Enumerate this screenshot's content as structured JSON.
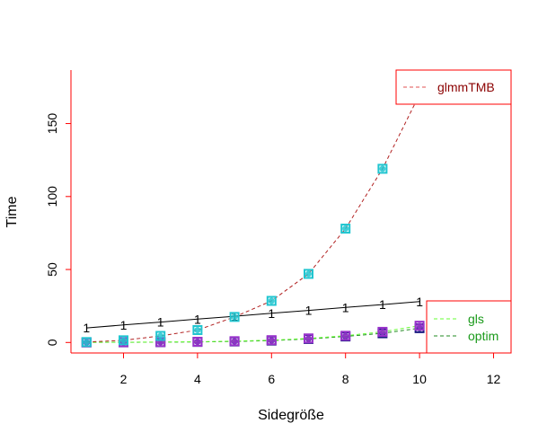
{
  "chart_data": {
    "type": "line",
    "title": "",
    "xlabel": "Sidegröße",
    "ylabel": "Time",
    "xlim": [
      1,
      12
    ],
    "ylim": [
      0,
      185
    ],
    "x_ticks": [
      2,
      4,
      6,
      8,
      10,
      12
    ],
    "y_ticks": [
      0,
      50,
      100,
      150
    ],
    "x": [
      1,
      2,
      3,
      4,
      5,
      6,
      7,
      8,
      9,
      10
    ],
    "series": [
      {
        "name": "glmmTMB",
        "color": "#b22222",
        "style": "dashed",
        "marker_color": "#20c5d0",
        "values": [
          0.3,
          1.5,
          4.5,
          8.5,
          17.5,
          28.5,
          47,
          78,
          119,
          170
        ]
      },
      {
        "name": "gls",
        "color": "#66ff33",
        "style": "dashed",
        "marker_color": "#9933cc",
        "values": [
          0.1,
          0.2,
          0.3,
          0.5,
          0.9,
          1.6,
          2.8,
          4.6,
          7.3,
          11.5
        ]
      },
      {
        "name": "optim",
        "color": "#228b22",
        "style": "dashed",
        "marker_color": "#1a1a80",
        "values": [
          0.05,
          0.1,
          0.2,
          0.4,
          0.7,
          1.3,
          2.4,
          4.1,
          6.3,
          9.8
        ]
      },
      {
        "name": "",
        "color": "#000000",
        "style": "solid",
        "point_label": "1",
        "values": [
          10,
          12,
          14,
          16,
          18,
          20,
          22,
          24,
          26,
          28
        ]
      }
    ],
    "legends": [
      {
        "position": "top-right",
        "border_color": "#ff0000",
        "items": [
          {
            "label": "glmmTMB",
            "color": "#8b0000",
            "line_color": "#e05050"
          }
        ]
      },
      {
        "position": "bottom-right",
        "border_color": "#ff0000",
        "items": [
          {
            "label": "gls",
            "color": "#1a9a1a",
            "line_color": "#66ff33"
          },
          {
            "label": "optim",
            "color": "#1a9a1a",
            "line_color": "#228b22"
          }
        ]
      }
    ],
    "frame_color": "#ff0000",
    "grid": false
  }
}
